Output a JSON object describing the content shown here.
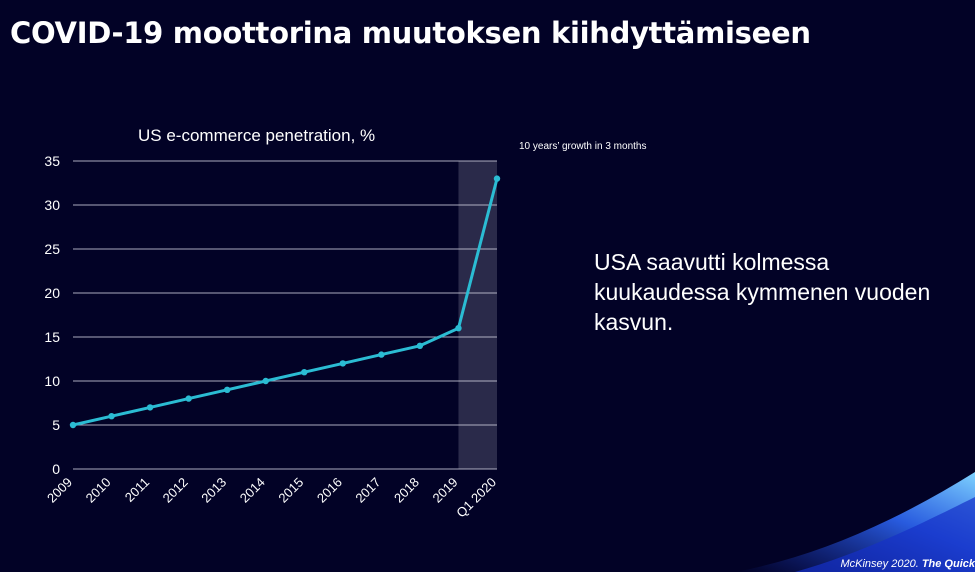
{
  "slide": {
    "title": "COVID-19 moottorina muutoksen kiihdyttämiseen",
    "callout": "USA saavutti kolmessa kuukaudessa kymmenen vuoden kasvun.",
    "footer_source": "McKinsey 2020.",
    "footer_title": "The Quick"
  },
  "colors": {
    "background": "#020226",
    "line": "#2bbcd3",
    "highlight_band": "#2a2a4a",
    "grid": "#c8c8d8"
  },
  "chart_data": {
    "type": "line",
    "title": "US e-commerce penetration, %",
    "categories": [
      "2009",
      "2010",
      "2011",
      "2012",
      "2013",
      "2014",
      "2015",
      "2016",
      "2017",
      "2018",
      "2019",
      "Q1 2020"
    ],
    "series": [
      {
        "values": [
          5,
          6,
          7,
          8,
          9,
          10,
          11,
          12,
          13,
          14,
          16,
          33
        ]
      }
    ],
    "ylim": [
      0,
      35
    ],
    "yticks": [
      0,
      5,
      10,
      15,
      20,
      25,
      30,
      35
    ],
    "grid": true,
    "highlight": {
      "from": "2019",
      "to": "Q1 2020"
    },
    "annotation": "10 years’ growth in 3 months"
  }
}
